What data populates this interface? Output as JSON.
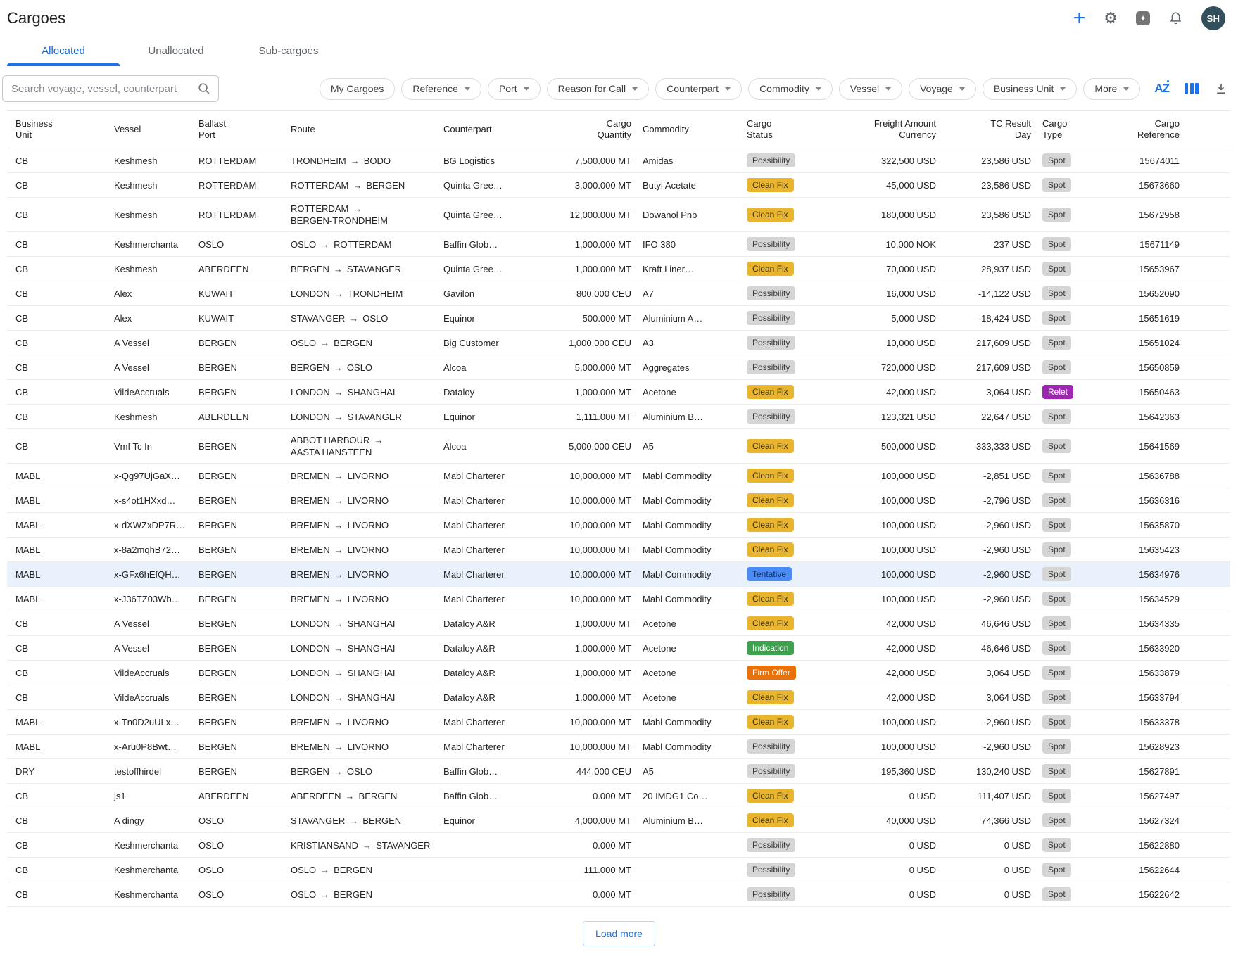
{
  "header": {
    "title": "Cargoes",
    "avatar_initials": "SH"
  },
  "icons": {
    "plus": "+",
    "gear": "⚙",
    "star": "✦",
    "sort_a": "A",
    "sort_z": "Z",
    "route_arrow": "→"
  },
  "tabs": [
    {
      "label": "Allocated",
      "active": true
    },
    {
      "label": "Unallocated",
      "active": false
    },
    {
      "label": "Sub-cargoes",
      "active": false
    }
  ],
  "search": {
    "placeholder": "Search voyage, vessel, counterpart"
  },
  "filters": {
    "chips": [
      {
        "label": "My Cargoes",
        "dropdown": false
      },
      {
        "label": "Reference",
        "dropdown": true
      },
      {
        "label": "Port",
        "dropdown": true
      },
      {
        "label": "Reason for Call",
        "dropdown": true
      },
      {
        "label": "Counterpart",
        "dropdown": true
      },
      {
        "label": "Commodity",
        "dropdown": true
      },
      {
        "label": "Vessel",
        "dropdown": true
      },
      {
        "label": "Voyage",
        "dropdown": true
      },
      {
        "label": "Business Unit",
        "dropdown": true
      },
      {
        "label": "More",
        "dropdown": true
      }
    ]
  },
  "table": {
    "columns": [
      {
        "id": "business-unit",
        "lines": [
          "Business",
          "Unit"
        ],
        "align": "left"
      },
      {
        "id": "vessel",
        "lines": [
          "Vessel"
        ],
        "align": "left"
      },
      {
        "id": "ballast-port",
        "lines": [
          "Ballast",
          "Port"
        ],
        "align": "left"
      },
      {
        "id": "route",
        "lines": [
          "Route"
        ],
        "align": "left"
      },
      {
        "id": "counterpart",
        "lines": [
          "Counterpart"
        ],
        "align": "left"
      },
      {
        "id": "cargo-quantity",
        "lines": [
          "Cargo",
          "Quantity"
        ],
        "align": "right"
      },
      {
        "id": "commodity",
        "lines": [
          "Commodity"
        ],
        "align": "left"
      },
      {
        "id": "cargo-status",
        "lines": [
          "Cargo",
          "Status"
        ],
        "align": "left"
      },
      {
        "id": "freight-amount-currency",
        "lines": [
          "Freight Amount",
          "Currency"
        ],
        "align": "right"
      },
      {
        "id": "tc-result-day",
        "lines": [
          "TC Result",
          "Day"
        ],
        "align": "right"
      },
      {
        "id": "cargo-type",
        "lines": [
          "Cargo",
          "Type"
        ],
        "align": "left"
      },
      {
        "id": "cargo-reference",
        "lines": [
          "Cargo",
          "Reference"
        ],
        "align": "right"
      }
    ],
    "rows": [
      {
        "bu": "CB",
        "vessel": "Keshmesh",
        "port": "ROTTERDAM",
        "from": "TRONDHEIM",
        "to": "BODO",
        "cp": "BG Logistics",
        "qty": "7,500.000 MT",
        "com": "Amidas",
        "status": "Possibility",
        "freight": "322,500 USD",
        "tc": "23,586 USD",
        "type": "Spot",
        "ref": "15674011"
      },
      {
        "bu": "CB",
        "vessel": "Keshmesh",
        "port": "ROTTERDAM",
        "from": "ROTTERDAM",
        "to": "BERGEN",
        "cp": "Quinta Gree…",
        "qty": "3,000.000 MT",
        "com": "Butyl Acetate",
        "status": "Clean Fix",
        "freight": "45,000 USD",
        "tc": "23,586 USD",
        "type": "Spot",
        "ref": "15673660"
      },
      {
        "bu": "CB",
        "vessel": "Keshmesh",
        "port": "ROTTERDAM",
        "from": "ROTTERDAM",
        "to": "BERGEN-TRONDHEIM",
        "wrap": true,
        "cp": "Quinta Gree…",
        "qty": "12,000.000 MT",
        "com": "Dowanol Pnb",
        "status": "Clean Fix",
        "freight": "180,000 USD",
        "tc": "23,586 USD",
        "type": "Spot",
        "ref": "15672958"
      },
      {
        "bu": "CB",
        "vessel": "Keshmerchanta",
        "port": "OSLO",
        "from": "OSLO",
        "to": "ROTTERDAM",
        "cp": "Baffin Glob…",
        "qty": "1,000.000 MT",
        "com": "IFO 380",
        "status": "Possibility",
        "freight": "10,000 NOK",
        "tc": "237 USD",
        "type": "Spot",
        "ref": "15671149"
      },
      {
        "bu": "CB",
        "vessel": "Keshmesh",
        "port": "ABERDEEN",
        "from": "BERGEN",
        "to": "STAVANGER",
        "cp": "Quinta Gree…",
        "qty": "1,000.000 MT",
        "com": "Kraft Liner…",
        "status": "Clean Fix",
        "freight": "70,000 USD",
        "tc": "28,937 USD",
        "type": "Spot",
        "ref": "15653967"
      },
      {
        "bu": "CB",
        "vessel": "Alex",
        "port": "KUWAIT",
        "from": "LONDON",
        "to": "TRONDHEIM",
        "cp": "Gavilon",
        "qty": "800.000 CEU",
        "com": "A7",
        "status": "Possibility",
        "freight": "16,000 USD",
        "tc": "-14,122 USD",
        "type": "Spot",
        "ref": "15652090"
      },
      {
        "bu": "CB",
        "vessel": "Alex",
        "port": "KUWAIT",
        "from": "STAVANGER",
        "to": "OSLO",
        "cp": "Equinor",
        "qty": "500.000 MT",
        "com": "Aluminium A…",
        "status": "Possibility",
        "freight": "5,000 USD",
        "tc": "-18,424 USD",
        "type": "Spot",
        "ref": "15651619"
      },
      {
        "bu": "CB",
        "vessel": "A Vessel",
        "port": "BERGEN",
        "from": "OSLO",
        "to": "BERGEN",
        "cp": "Big Customer",
        "qty": "1,000.000 CEU",
        "com": "A3",
        "status": "Possibility",
        "freight": "10,000 USD",
        "tc": "217,609 USD",
        "type": "Spot",
        "ref": "15651024"
      },
      {
        "bu": "CB",
        "vessel": "A Vessel",
        "port": "BERGEN",
        "from": "BERGEN",
        "to": "OSLO",
        "cp": "Alcoa",
        "qty": "5,000.000 MT",
        "com": "Aggregates",
        "status": "Possibility",
        "freight": "720,000 USD",
        "tc": "217,609 USD",
        "type": "Spot",
        "ref": "15650859"
      },
      {
        "bu": "CB",
        "vessel": "VildeAccruals",
        "port": "BERGEN",
        "from": "LONDON",
        "to": "SHANGHAI",
        "cp": "Dataloy",
        "qty": "1,000.000 MT",
        "com": "Acetone",
        "status": "Clean Fix",
        "freight": "42,000 USD",
        "tc": "3,064 USD",
        "type": "Relet",
        "ref": "15650463"
      },
      {
        "bu": "CB",
        "vessel": "Keshmesh",
        "port": "ABERDEEN",
        "from": "LONDON",
        "to": "STAVANGER",
        "cp": "Equinor",
        "qty": "1,111.000 MT",
        "com": "Aluminium B…",
        "status": "Possibility",
        "freight": "123,321 USD",
        "tc": "22,647 USD",
        "type": "Spot",
        "ref": "15642363"
      },
      {
        "bu": "CB",
        "vessel": "Vmf Tc In",
        "port": "BERGEN",
        "from": "ABBOT HARBOUR",
        "to": "AASTA HANSTEEN",
        "wrap": true,
        "cp": "Alcoa",
        "qty": "5,000.000 CEU",
        "com": "A5",
        "status": "Clean Fix",
        "freight": "500,000 USD",
        "tc": "333,333 USD",
        "type": "Spot",
        "ref": "15641569"
      },
      {
        "bu": "MABL",
        "vessel": "x-Qg97UjGaX…",
        "port": "BERGEN",
        "from": "BREMEN",
        "to": "LIVORNO",
        "cp": "Mabl Charterer",
        "qty": "10,000.000 MT",
        "com": "Mabl Commodity",
        "status": "Clean Fix",
        "freight": "100,000 USD",
        "tc": "-2,851 USD",
        "type": "Spot",
        "ref": "15636788"
      },
      {
        "bu": "MABL",
        "vessel": "x-s4ot1HXxd…",
        "port": "BERGEN",
        "from": "BREMEN",
        "to": "LIVORNO",
        "cp": "Mabl Charterer",
        "qty": "10,000.000 MT",
        "com": "Mabl Commodity",
        "status": "Clean Fix",
        "freight": "100,000 USD",
        "tc": "-2,796 USD",
        "type": "Spot",
        "ref": "15636316"
      },
      {
        "bu": "MABL",
        "vessel": "x-dXWZxDP7R…",
        "port": "BERGEN",
        "from": "BREMEN",
        "to": "LIVORNO",
        "cp": "Mabl Charterer",
        "qty": "10,000.000 MT",
        "com": "Mabl Commodity",
        "status": "Clean Fix",
        "freight": "100,000 USD",
        "tc": "-2,960 USD",
        "type": "Spot",
        "ref": "15635870"
      },
      {
        "bu": "MABL",
        "vessel": "x-8a2mqhB72…",
        "port": "BERGEN",
        "from": "BREMEN",
        "to": "LIVORNO",
        "cp": "Mabl Charterer",
        "qty": "10,000.000 MT",
        "com": "Mabl Commodity",
        "status": "Clean Fix",
        "freight": "100,000 USD",
        "tc": "-2,960 USD",
        "type": "Spot",
        "ref": "15635423"
      },
      {
        "bu": "MABL",
        "vessel": "x-GFx6hEfQH…",
        "port": "BERGEN",
        "from": "BREMEN",
        "to": "LIVORNO",
        "cp": "Mabl Charterer",
        "qty": "10,000.000 MT",
        "com": "Mabl Commodity",
        "status": "Tentative",
        "freight": "100,000 USD",
        "tc": "-2,960 USD",
        "type": "Spot",
        "ref": "15634976",
        "hl": true
      },
      {
        "bu": "MABL",
        "vessel": "x-J36TZ03Wb…",
        "port": "BERGEN",
        "from": "BREMEN",
        "to": "LIVORNO",
        "cp": "Mabl Charterer",
        "qty": "10,000.000 MT",
        "com": "Mabl Commodity",
        "status": "Clean Fix",
        "freight": "100,000 USD",
        "tc": "-2,960 USD",
        "type": "Spot",
        "ref": "15634529"
      },
      {
        "bu": "CB",
        "vessel": "A Vessel",
        "port": "BERGEN",
        "from": "LONDON",
        "to": "SHANGHAI",
        "cp": "Dataloy A&R",
        "qty": "1,000.000 MT",
        "com": "Acetone",
        "status": "Clean Fix",
        "freight": "42,000 USD",
        "tc": "46,646 USD",
        "type": "Spot",
        "ref": "15634335"
      },
      {
        "bu": "CB",
        "vessel": "A Vessel",
        "port": "BERGEN",
        "from": "LONDON",
        "to": "SHANGHAI",
        "cp": "Dataloy A&R",
        "qty": "1,000.000 MT",
        "com": "Acetone",
        "status": "Indication",
        "freight": "42,000 USD",
        "tc": "46,646 USD",
        "type": "Spot",
        "ref": "15633920"
      },
      {
        "bu": "CB",
        "vessel": "VildeAccruals",
        "port": "BERGEN",
        "from": "LONDON",
        "to": "SHANGHAI",
        "cp": "Dataloy A&R",
        "qty": "1,000.000 MT",
        "com": "Acetone",
        "status": "Firm Offer",
        "freight": "42,000 USD",
        "tc": "3,064 USD",
        "type": "Spot",
        "ref": "15633879"
      },
      {
        "bu": "CB",
        "vessel": "VildeAccruals",
        "port": "BERGEN",
        "from": "LONDON",
        "to": "SHANGHAI",
        "cp": "Dataloy A&R",
        "qty": "1,000.000 MT",
        "com": "Acetone",
        "status": "Clean Fix",
        "freight": "42,000 USD",
        "tc": "3,064 USD",
        "type": "Spot",
        "ref": "15633794"
      },
      {
        "bu": "MABL",
        "vessel": "x-Tn0D2uULx…",
        "port": "BERGEN",
        "from": "BREMEN",
        "to": "LIVORNO",
        "cp": "Mabl Charterer",
        "qty": "10,000.000 MT",
        "com": "Mabl Commodity",
        "status": "Clean Fix",
        "freight": "100,000 USD",
        "tc": "-2,960 USD",
        "type": "Spot",
        "ref": "15633378"
      },
      {
        "bu": "MABL",
        "vessel": "x-Aru0P8Bwt…",
        "port": "BERGEN",
        "from": "BREMEN",
        "to": "LIVORNO",
        "cp": "Mabl Charterer",
        "qty": "10,000.000 MT",
        "com": "Mabl Commodity",
        "status": "Possibility",
        "freight": "100,000 USD",
        "tc": "-2,960 USD",
        "type": "Spot",
        "ref": "15628923"
      },
      {
        "bu": "DRY",
        "vessel": "testoffhirdel",
        "port": "BERGEN",
        "from": "BERGEN",
        "to": "OSLO",
        "cp": "Baffin Glob…",
        "qty": "444.000 CEU",
        "com": "A5",
        "status": "Possibility",
        "freight": "195,360 USD",
        "tc": "130,240 USD",
        "type": "Spot",
        "ref": "15627891"
      },
      {
        "bu": "CB",
        "vessel": "js1",
        "port": "ABERDEEN",
        "from": "ABERDEEN",
        "to": "BERGEN",
        "cp": "Baffin Glob…",
        "qty": "0.000 MT",
        "com": "20 IMDG1 Co…",
        "status": "Clean Fix",
        "freight": "0 USD",
        "tc": "111,407 USD",
        "type": "Spot",
        "ref": "15627497"
      },
      {
        "bu": "CB",
        "vessel": "A dingy",
        "port": "OSLO",
        "from": "STAVANGER",
        "to": "BERGEN",
        "cp": "Equinor",
        "qty": "4,000.000 MT",
        "com": "Aluminium B…",
        "status": "Clean Fix",
        "freight": "40,000 USD",
        "tc": "74,366 USD",
        "type": "Spot",
        "ref": "15627324"
      },
      {
        "bu": "CB",
        "vessel": "Keshmerchanta",
        "port": "OSLO",
        "from": "KRISTIANSAND",
        "to": "STAVANGER",
        "cp": "",
        "qty": "0.000 MT",
        "com": "",
        "status": "Possibility",
        "freight": "0 USD",
        "tc": "0 USD",
        "type": "Spot",
        "ref": "15622880"
      },
      {
        "bu": "CB",
        "vessel": "Keshmerchanta",
        "port": "OSLO",
        "from": "OSLO",
        "to": "BERGEN",
        "cp": "",
        "qty": "111.000 MT",
        "com": "",
        "status": "Possibility",
        "freight": "0 USD",
        "tc": "0 USD",
        "type": "Spot",
        "ref": "15622644"
      },
      {
        "bu": "CB",
        "vessel": "Keshmerchanta",
        "port": "OSLO",
        "from": "OSLO",
        "to": "BERGEN",
        "cp": "",
        "qty": "0.000 MT",
        "com": "",
        "status": "Possibility",
        "freight": "0 USD",
        "tc": "0 USD",
        "type": "Spot",
        "ref": "15622642"
      }
    ]
  },
  "load_more_label": "Load more",
  "colors": {
    "accent": "#1a73e8",
    "tab_active": "#1967d2",
    "avatar_bg": "#334f5c",
    "row_highlight": "#e9f1fc",
    "status": {
      "Possibility": {
        "bg": "#d5d5d5",
        "fg": "#3c3c3c"
      },
      "Clean Fix": {
        "bg": "#e9b42e",
        "fg": "#3f3000"
      },
      "Tentative": {
        "bg": "#4b8bf5",
        "fg": "#0e2d66"
      },
      "Indication": {
        "bg": "#3da14d",
        "fg": "#ffffff"
      },
      "Firm Offer": {
        "bg": "#e97109",
        "fg": "#ffffff"
      }
    },
    "type": {
      "Spot": {
        "bg": "#d5d5d5",
        "fg": "#3c3c3c"
      },
      "Relet": {
        "bg": "#9d27b0",
        "fg": "#ffffff"
      }
    }
  }
}
